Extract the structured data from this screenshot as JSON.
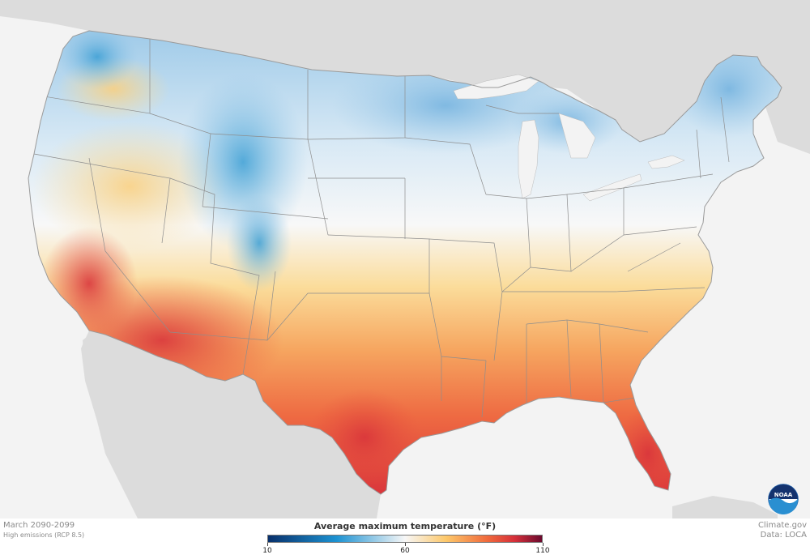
{
  "map": {
    "period": "March 2090-2099",
    "scenario": "High emissions (RCP 8.5)",
    "credit_site": "Climate.gov",
    "credit_data": "Data: LOCA",
    "logo_text": "NOAA"
  },
  "legend": {
    "title": "Average maximum temperature (°F)",
    "min": 10,
    "max": 110,
    "ticks": [
      "10",
      "60",
      "110"
    ],
    "tick_values": [
      10,
      60,
      110
    ],
    "gradient": [
      {
        "value": 10,
        "color": "#08306b"
      },
      {
        "value": 35,
        "color": "#1c92d2"
      },
      {
        "value": 60,
        "color": "#f7f7f7"
      },
      {
        "value": 75,
        "color": "#fdc86a"
      },
      {
        "value": 90,
        "color": "#f06a3c"
      },
      {
        "value": 100,
        "color": "#d6303a"
      },
      {
        "value": 110,
        "color": "#6b0a2e"
      }
    ]
  },
  "colors": {
    "land_context": "#dcdcdc",
    "water": "#f3f3f3",
    "border": "#888888",
    "logo_blue": "#1f5ea8"
  }
}
